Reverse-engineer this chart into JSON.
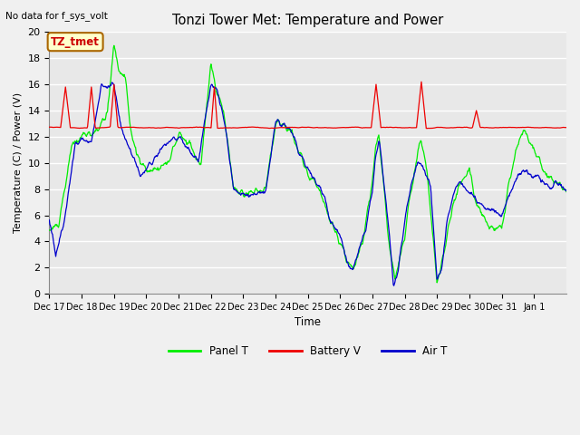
{
  "title": "Tonzi Tower Met: Temperature and Power",
  "no_data_text": "No data for f_sys_volt",
  "xlabel": "Time",
  "ylabel": "Temperature (C) / Power (V)",
  "annotation_text": "TZ_tmet",
  "ylim": [
    0,
    20
  ],
  "bg_color": "#e8e8e8",
  "fig_bg_color": "#f0f0f0",
  "panel_t_color": "#00ee00",
  "battery_v_color": "#ee0000",
  "air_t_color": "#0000cc",
  "x_tick_labels": [
    "Dec 17",
    "Dec 18",
    "Dec 19",
    "Dec 20",
    "Dec 21",
    "Dec 22",
    "Dec 23",
    "Dec 24",
    "Dec 25",
    "Dec 26",
    "Dec 27",
    "Dec 28",
    "Dec 29",
    "Dec 30",
    "Dec 31",
    "Jan 1"
  ],
  "legend_labels": [
    "Panel T",
    "Battery V",
    "Air T"
  ]
}
